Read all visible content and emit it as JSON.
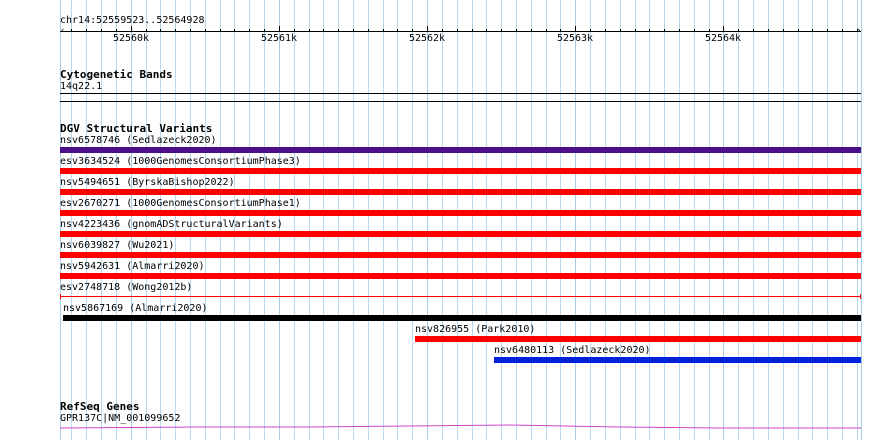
{
  "ruler": {
    "location": "chr14:52559523..52564928",
    "ticks": [
      "52560k",
      "52561k",
      "52562k",
      "52563k",
      "52564k"
    ]
  },
  "cyto": {
    "title": "Cytogenetic Bands",
    "band": "14q22.1"
  },
  "dgv": {
    "title": "DGV Structural Variants",
    "variants": [
      {
        "label": "nsv6578746 (Sedlazeck2020)",
        "color": "#4b0f8c",
        "start": 52559523,
        "end": 52564928
      },
      {
        "label": "esv3634524 (1000GenomesConsortiumPhase3)",
        "color": "#ff0000",
        "start": 52559523,
        "end": 52564928
      },
      {
        "label": "nsv5494651 (ByrskaBishop2022)",
        "color": "#ff0000",
        "start": 52559523,
        "end": 52564928
      },
      {
        "label": "esv2670271 (1000GenomesConsortiumPhase1)",
        "color": "#ff0000",
        "start": 52559523,
        "end": 52564928
      },
      {
        "label": "nsv4223436 (gnomADStructuralVariants)",
        "color": "#ff0000",
        "start": 52559523,
        "end": 52564928
      },
      {
        "label": "nsv6039827 (Wu2021)",
        "color": "#ff0000",
        "start": 52559523,
        "end": 52564928
      },
      {
        "label": "nsv5942631 (Almarri2020)",
        "color": "#ff0000",
        "start": 52559523,
        "end": 52564928
      },
      {
        "label": "esv2748718 (Wong2012b)",
        "color": "#ff0000",
        "start": 52559523,
        "end": 52564928,
        "style": "thin"
      },
      {
        "label": "nsv5867169 (Almarri2020)",
        "color": "#000000",
        "start": 52559540,
        "end": 52564928
      },
      {
        "label": "nsv826955 (Park2010)",
        "color": "#ff0000",
        "start": 52561917,
        "end": 52564928
      },
      {
        "label": "nsv6480113 (Sedlazeck2020)",
        "color": "#0022dd",
        "start": 52562450,
        "end": 52564928
      }
    ]
  },
  "refseq": {
    "title": "RefSeq Genes",
    "gene": "GPR137C|NM_001099652",
    "color": "#cc44cc"
  }
}
